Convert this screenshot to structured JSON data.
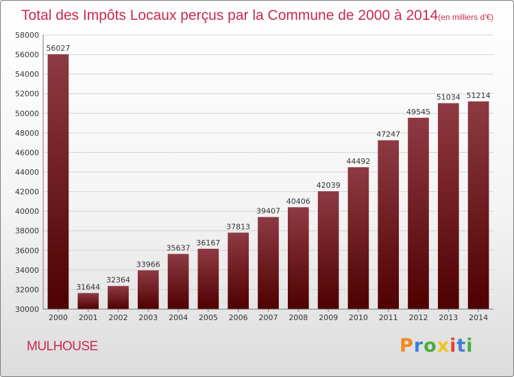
{
  "chart_data": {
    "type": "bar",
    "title": "Total des Impôts Locaux perçus par la Commune de 2000 à 2014",
    "subtitle": "(en milliers d'€)",
    "categories": [
      "2000",
      "2001",
      "2002",
      "2003",
      "2004",
      "2005",
      "2006",
      "2007",
      "2008",
      "2009",
      "2010",
      "2011",
      "2012",
      "2013",
      "2014"
    ],
    "values": [
      56027,
      31644,
      32364,
      33966,
      35637,
      36167,
      37813,
      39407,
      40406,
      42039,
      44492,
      47247,
      49545,
      51034,
      51214
    ],
    "ylim": [
      30000,
      58000
    ],
    "yticks": [
      30000,
      32000,
      34000,
      36000,
      38000,
      40000,
      42000,
      44000,
      46000,
      48000,
      50000,
      52000,
      54000,
      56000,
      58000
    ],
    "grid": true,
    "xlabel": "",
    "ylabel": ""
  },
  "commune": "MULHOUSE",
  "logo": {
    "letters": [
      "P",
      "r",
      "o",
      "x",
      "i",
      "t",
      "i"
    ],
    "colors": [
      "#f08a1c",
      "#3d7fd6",
      "#48ad3f",
      "#f0c419",
      "#e4442f",
      "#3d7fd6",
      "#48ad3f"
    ]
  },
  "colors": {
    "bar_top": "#8e3a43",
    "bar_bottom": "#4f0000"
  }
}
